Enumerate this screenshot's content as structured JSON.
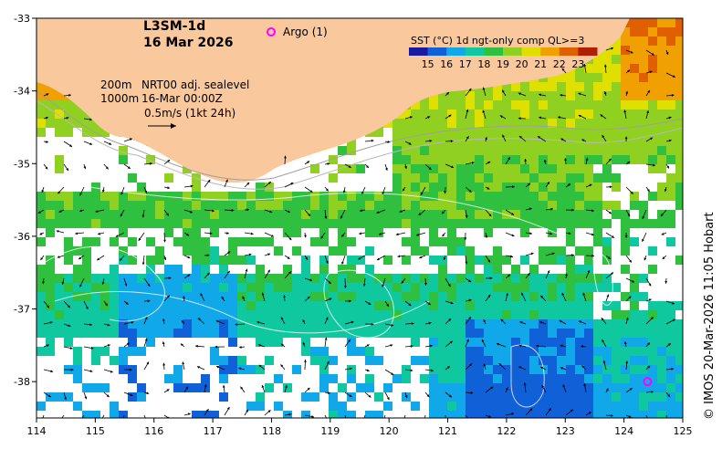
{
  "title": {
    "product": "L3SM-1d",
    "date": "16 Mar 2026"
  },
  "argo_legend": {
    "label": "Argo (1)",
    "marker_color": "#ff00ff"
  },
  "vector_legend": {
    "depth_line_1": "200m",
    "depth_line_2": "1000m",
    "product_line": "NRT00 adj. sealevel",
    "time_line": "16-Mar 00:00Z",
    "scale_label": "0.5m/s (1kt 24h)"
  },
  "colorbar": {
    "title": "SST (°C) 1d ngt-only comp QL>=3",
    "ticks": [
      "15",
      "16",
      "17",
      "18",
      "19",
      "20",
      "21",
      "22",
      "23"
    ],
    "colors": [
      "#1a1aa0",
      "#1060d8",
      "#10a8e8",
      "#10c8a0",
      "#30c040",
      "#90d020",
      "#e0e000",
      "#f0a000",
      "#e06000",
      "#b02000"
    ]
  },
  "map": {
    "lon_range": [
      114,
      125
    ],
    "lat_range": [
      -38.5,
      -33
    ],
    "x_ticks": [
      "114",
      "115",
      "116",
      "117",
      "118",
      "119",
      "120",
      "121",
      "122",
      "123",
      "124",
      "125"
    ],
    "y_ticks": [
      "-33",
      "-34",
      "-35",
      "-36",
      "-37",
      "-38"
    ],
    "land_color": "#f9c89c",
    "argo_floats": [
      {
        "lon": 124.4,
        "lat": -38.0
      }
    ]
  },
  "credit": "© IMOS 20-Mar-2026 11:05 Hobart"
}
